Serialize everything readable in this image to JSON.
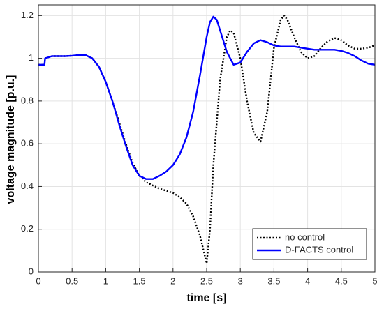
{
  "chart_data": {
    "type": "line",
    "xlabel": "time [s]",
    "ylabel": "voltage magnitude [p.u.]",
    "xlim": [
      0,
      5
    ],
    "ylim": [
      0,
      1.25
    ],
    "xticks": [
      0,
      0.5,
      1,
      1.5,
      2,
      2.5,
      3,
      3.5,
      4,
      4.5,
      5
    ],
    "yticks": [
      0,
      0.2,
      0.4,
      0.6,
      0.8,
      1,
      1.2
    ],
    "grid": true,
    "legend": "lower right",
    "series": [
      {
        "name": "no control",
        "color": "#000000",
        "style": "dotted",
        "x": [
          0,
          0.09,
          0.1,
          0.2,
          0.3,
          0.4,
          0.5,
          0.6,
          0.7,
          0.8,
          0.9,
          1.0,
          1.1,
          1.2,
          1.3,
          1.4,
          1.5,
          1.6,
          1.7,
          1.8,
          1.9,
          2.0,
          2.1,
          2.2,
          2.3,
          2.4,
          2.5,
          2.55,
          2.6,
          2.7,
          2.8,
          2.85,
          2.9,
          3.0,
          3.1,
          3.2,
          3.3,
          3.4,
          3.5,
          3.6,
          3.65,
          3.7,
          3.8,
          3.9,
          4.0,
          4.1,
          4.2,
          4.3,
          4.4,
          4.5,
          4.6,
          4.7,
          4.8,
          4.9,
          5.0
        ],
        "values": [
          0.97,
          0.97,
          1.0,
          1.01,
          1.01,
          1.01,
          1.012,
          1.015,
          1.015,
          1.0,
          0.96,
          0.89,
          0.8,
          0.7,
          0.6,
          0.51,
          0.45,
          0.42,
          0.405,
          0.39,
          0.38,
          0.37,
          0.35,
          0.32,
          0.26,
          0.17,
          0.04,
          0.2,
          0.5,
          0.9,
          1.1,
          1.13,
          1.12,
          1.0,
          0.8,
          0.65,
          0.61,
          0.75,
          1.05,
          1.18,
          1.2,
          1.18,
          1.1,
          1.03,
          1.0,
          1.01,
          1.05,
          1.08,
          1.095,
          1.085,
          1.06,
          1.045,
          1.045,
          1.05,
          1.06
        ]
      },
      {
        "name": "D-FACTS control",
        "color": "#0000ff",
        "style": "solid",
        "x": [
          0,
          0.09,
          0.1,
          0.2,
          0.3,
          0.4,
          0.5,
          0.6,
          0.7,
          0.8,
          0.9,
          1.0,
          1.1,
          1.2,
          1.3,
          1.4,
          1.5,
          1.6,
          1.7,
          1.8,
          1.9,
          2.0,
          2.1,
          2.2,
          2.3,
          2.4,
          2.5,
          2.55,
          2.6,
          2.65,
          2.7,
          2.8,
          2.9,
          3.0,
          3.1,
          3.2,
          3.3,
          3.4,
          3.5,
          3.6,
          3.7,
          3.8,
          3.9,
          4.0,
          4.1,
          4.2,
          4.3,
          4.4,
          4.5,
          4.6,
          4.7,
          4.8,
          4.9,
          5.0
        ],
        "values": [
          0.97,
          0.97,
          1.0,
          1.01,
          1.01,
          1.01,
          1.012,
          1.015,
          1.015,
          1.0,
          0.96,
          0.89,
          0.8,
          0.69,
          0.59,
          0.5,
          0.45,
          0.435,
          0.435,
          0.45,
          0.47,
          0.5,
          0.55,
          0.63,
          0.75,
          0.92,
          1.1,
          1.17,
          1.195,
          1.18,
          1.13,
          1.03,
          0.97,
          0.98,
          1.03,
          1.07,
          1.085,
          1.075,
          1.06,
          1.055,
          1.055,
          1.055,
          1.05,
          1.045,
          1.04,
          1.04,
          1.04,
          1.04,
          1.035,
          1.025,
          1.01,
          0.99,
          0.975,
          0.97
        ]
      }
    ]
  }
}
